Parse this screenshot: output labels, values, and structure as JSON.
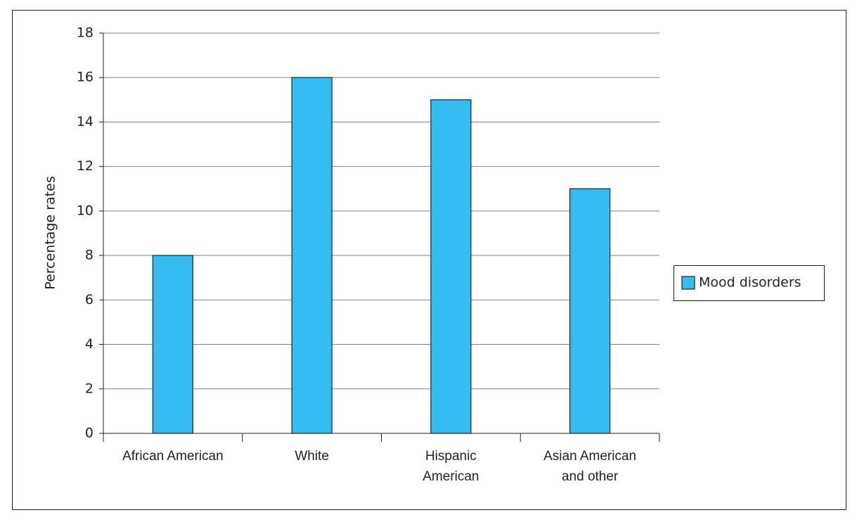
{
  "chart_data": {
    "type": "bar",
    "y_label": "Percentage rates",
    "categories": [
      "African American",
      "White",
      "Hispanic American",
      "Asian American and other"
    ],
    "series": [
      {
        "name": "Mood disorders",
        "color": "#35bdf2",
        "values": [
          8,
          16,
          15,
          11
        ]
      }
    ],
    "ylim": [
      0,
      18
    ],
    "yticks": [
      0,
      2,
      4,
      6,
      8,
      10,
      12,
      14,
      16,
      18
    ],
    "grid": true,
    "legend": "right"
  }
}
